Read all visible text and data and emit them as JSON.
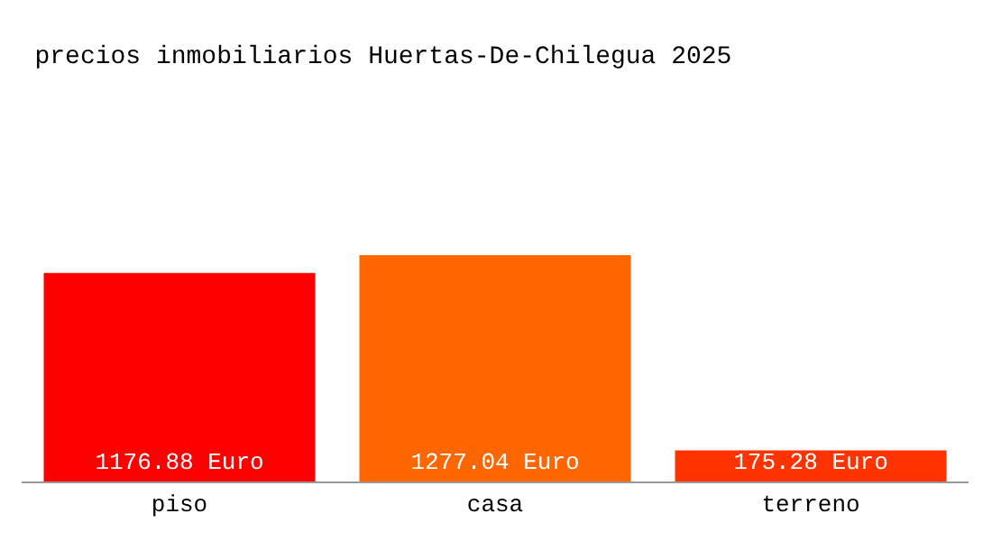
{
  "chart_data": {
    "type": "bar",
    "title": "precios inmobiliarios Huertas-De-Chilegua 2025",
    "categories": [
      "piso",
      "casa",
      "terreno"
    ],
    "values": [
      1176.88,
      1277.04,
      175.28
    ],
    "value_labels": [
      "1176.88 Euro",
      "1277.04 Euro",
      "175.28 Euro"
    ],
    "colors": [
      "#ff0000",
      "#ff6600",
      "#ff3300"
    ]
  }
}
